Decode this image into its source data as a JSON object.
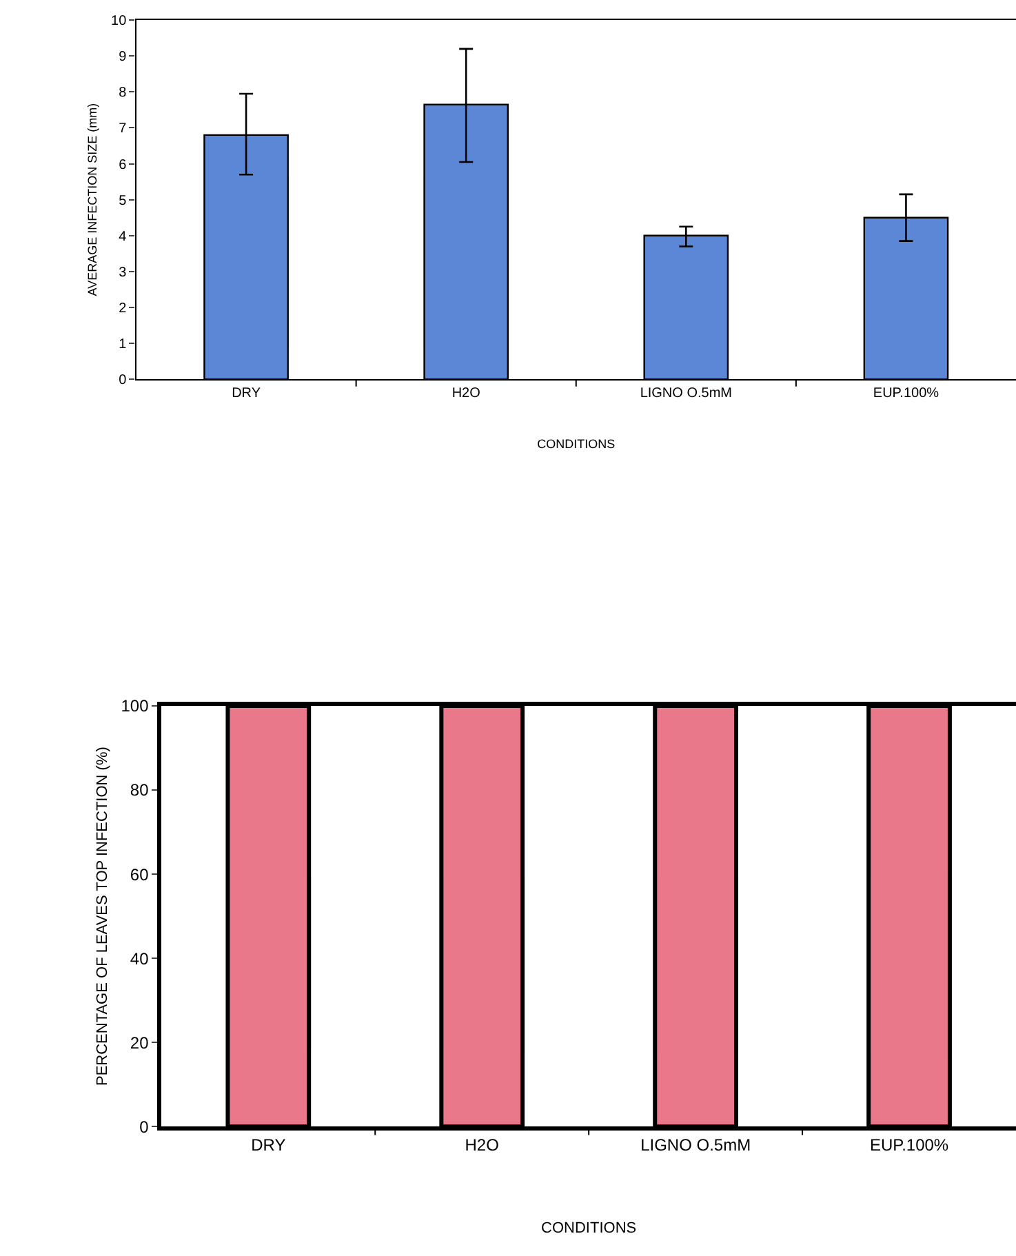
{
  "chart_data": [
    {
      "type": "bar",
      "xlabel": "CONDITIONS",
      "ylabel": "AVERAGE INFECTION SIZE (mm)",
      "categories": [
        "DRY",
        "H2O",
        "LIGNO O.5mM",
        "EUP.100%"
      ],
      "values": [
        6.8,
        7.65,
        4.0,
        4.5
      ],
      "color": "#5b87d6",
      "errors": [
        [
          5.7,
          7.95
        ],
        [
          6.05,
          9.2
        ],
        [
          3.7,
          4.25
        ],
        [
          3.85,
          5.15
        ]
      ],
      "ylim": [
        0,
        10
      ],
      "yticks": [
        0,
        1,
        2,
        3,
        4,
        5,
        6,
        7,
        8,
        9,
        10
      ]
    },
    {
      "type": "bar",
      "xlabel": "CONDITIONS",
      "ylabel": "PERCENTAGE OF LEAVES TOP INFECTION (%)",
      "categories": [
        "DRY",
        "H2O",
        "LIGNO O.5mM",
        "EUP.100%"
      ],
      "values": [
        100,
        100,
        100,
        100
      ],
      "color": "#e8788a",
      "ylim": [
        0,
        100
      ],
      "yticks": [
        0,
        20,
        40,
        60,
        80,
        100
      ]
    }
  ]
}
